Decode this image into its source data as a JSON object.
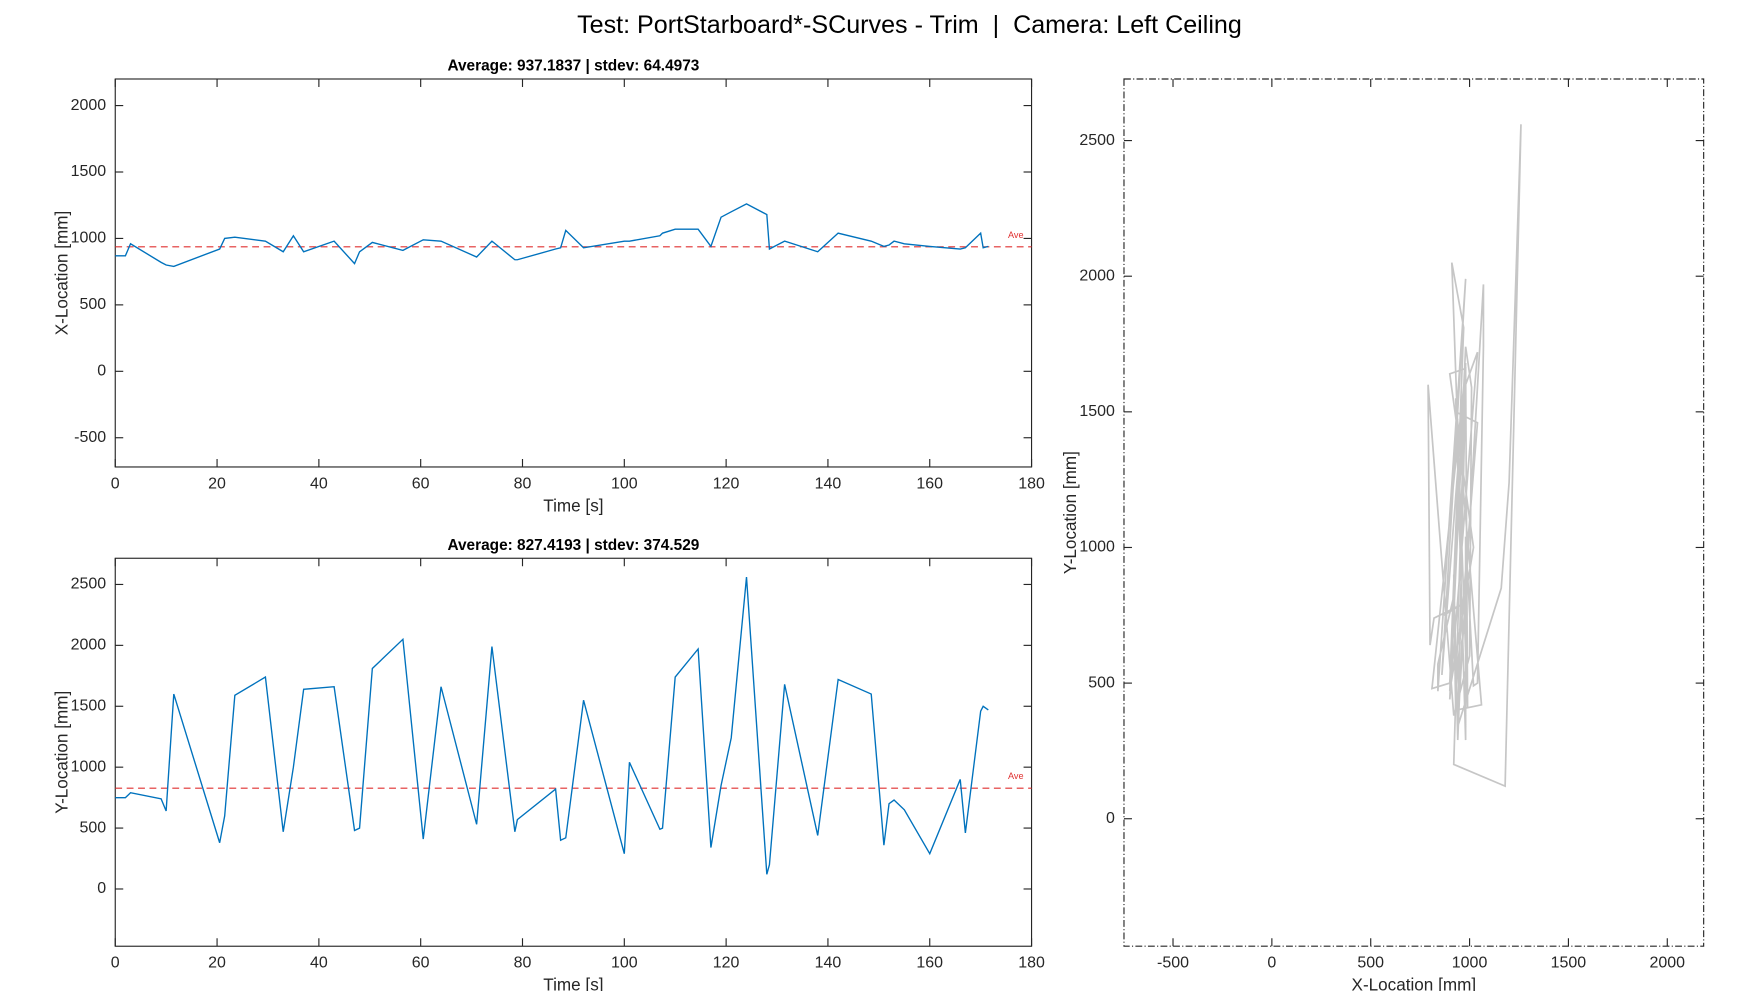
{
  "title": "Test: PortStarboard*-SCurves - Trim  |  Camera: Left Ceiling",
  "chart_data": [
    {
      "type": "line",
      "title": "Average: 937.1837  |  stdev: 64.4973",
      "xlabel": "Time [s]",
      "ylabel": "X-Location [mm]",
      "color": "#0072bd",
      "average": 937.1837,
      "average_label": "Ave",
      "average_color": "#e03030",
      "x": [
        0,
        2,
        3,
        9,
        10,
        11.5,
        20.5,
        21.5,
        23.5,
        29.5,
        33,
        35,
        37,
        43,
        47,
        48,
        50.5,
        56.5,
        60.5,
        64,
        71,
        74,
        78.5,
        79,
        86.5,
        87.5,
        88.5,
        92,
        100,
        101,
        107,
        107.5,
        110,
        114.5,
        117,
        119,
        121,
        124,
        128,
        128.5,
        131.5,
        138,
        142,
        148.5,
        151,
        152,
        153,
        155,
        160,
        166,
        167,
        170,
        170.5,
        171.5
      ],
      "values": [
        870,
        870,
        960,
        820,
        800,
        790,
        920,
        1000,
        1010,
        980,
        900,
        1020,
        900,
        980,
        810,
        900,
        970,
        910,
        990,
        980,
        860,
        980,
        840,
        840,
        920,
        930,
        1060,
        930,
        980,
        980,
        1020,
        1040,
        1070,
        1070,
        940,
        1160,
        1200,
        1260,
        1180,
        920,
        980,
        900,
        1040,
        980,
        940,
        950,
        980,
        960,
        940,
        920,
        930,
        1040,
        930,
        940
      ],
      "xlim": [
        0,
        180
      ],
      "xticks": [
        0,
        20,
        40,
        60,
        80,
        100,
        120,
        140,
        160,
        180
      ],
      "ylim": [
        -720,
        2200
      ],
      "yticks": [
        -500,
        0,
        500,
        1000,
        1500,
        2000
      ]
    },
    {
      "type": "line",
      "title": "Average: 827.4193  |  stdev: 374.529",
      "xlabel": "Time [s]",
      "ylabel": "Y-Location [mm]",
      "color": "#0072bd",
      "average": 827.4193,
      "average_label": "Ave",
      "average_color": "#e03030",
      "x": [
        0,
        2,
        3,
        9,
        10,
        11.5,
        20.5,
        21.5,
        23.5,
        29.5,
        33,
        35,
        37,
        43,
        47,
        48,
        50.5,
        56.5,
        60.5,
        64,
        71,
        74,
        78.5,
        79,
        86.5,
        87.5,
        88.5,
        92,
        100,
        101,
        107,
        107.5,
        110,
        114.5,
        117,
        119,
        121,
        124,
        128,
        128.5,
        131.5,
        138,
        142,
        148.5,
        151,
        152,
        153,
        155,
        160,
        166,
        167,
        170,
        170.5,
        171.5
      ],
      "values": [
        750,
        750,
        790,
        740,
        640,
        1600,
        380,
        600,
        1590,
        1740,
        470,
        1000,
        1640,
        1660,
        480,
        500,
        1810,
        2050,
        410,
        1660,
        530,
        1990,
        470,
        570,
        820,
        400,
        420,
        1550,
        290,
        1040,
        490,
        500,
        1740,
        1970,
        340,
        850,
        1240,
        2560,
        120,
        200,
        1680,
        440,
        1720,
        1600,
        360,
        700,
        730,
        650,
        290,
        900,
        460,
        1460,
        1500,
        1470
      ],
      "xlim": [
        0,
        180
      ],
      "xticks": [
        0,
        20,
        40,
        60,
        80,
        100,
        120,
        140,
        160,
        180
      ],
      "ylim": [
        -470,
        2715
      ],
      "yticks": [
        0,
        500,
        1000,
        1500,
        2000,
        2500
      ]
    },
    {
      "type": "trajectory",
      "xlabel": "X-Location [mm]",
      "ylabel": "Y-Location [mm]",
      "color": "#808080",
      "opacity": 0.45,
      "x": [
        870,
        870,
        960,
        820,
        800,
        790,
        920,
        1000,
        1010,
        980,
        900,
        1020,
        900,
        980,
        810,
        900,
        970,
        910,
        990,
        980,
        860,
        980,
        840,
        840,
        920,
        930,
        1060,
        930,
        980,
        980,
        1020,
        1040,
        1070,
        1070,
        940,
        1160,
        1200,
        1260,
        1180,
        920,
        980,
        900,
        1040,
        980,
        940,
        950,
        980,
        960,
        940,
        920,
        930,
        1040,
        930,
        940
      ],
      "values": [
        750,
        750,
        790,
        740,
        640,
        1600,
        380,
        600,
        1590,
        1740,
        470,
        1000,
        1640,
        1660,
        480,
        500,
        1810,
        2050,
        410,
        1660,
        530,
        1990,
        470,
        570,
        820,
        400,
        420,
        1550,
        290,
        1040,
        490,
        500,
        1740,
        1970,
        340,
        850,
        1240,
        2560,
        120,
        200,
        1680,
        440,
        1720,
        1600,
        360,
        700,
        730,
        650,
        290,
        900,
        460,
        1460,
        1500,
        1470
      ],
      "xlim": [
        -748,
        2184
      ],
      "xticks": [
        -500,
        0,
        500,
        1000,
        1500,
        2000
      ],
      "ylim": [
        -470,
        2727
      ],
      "yticks": [
        0,
        500,
        1000,
        1500,
        2000,
        2500
      ]
    }
  ]
}
